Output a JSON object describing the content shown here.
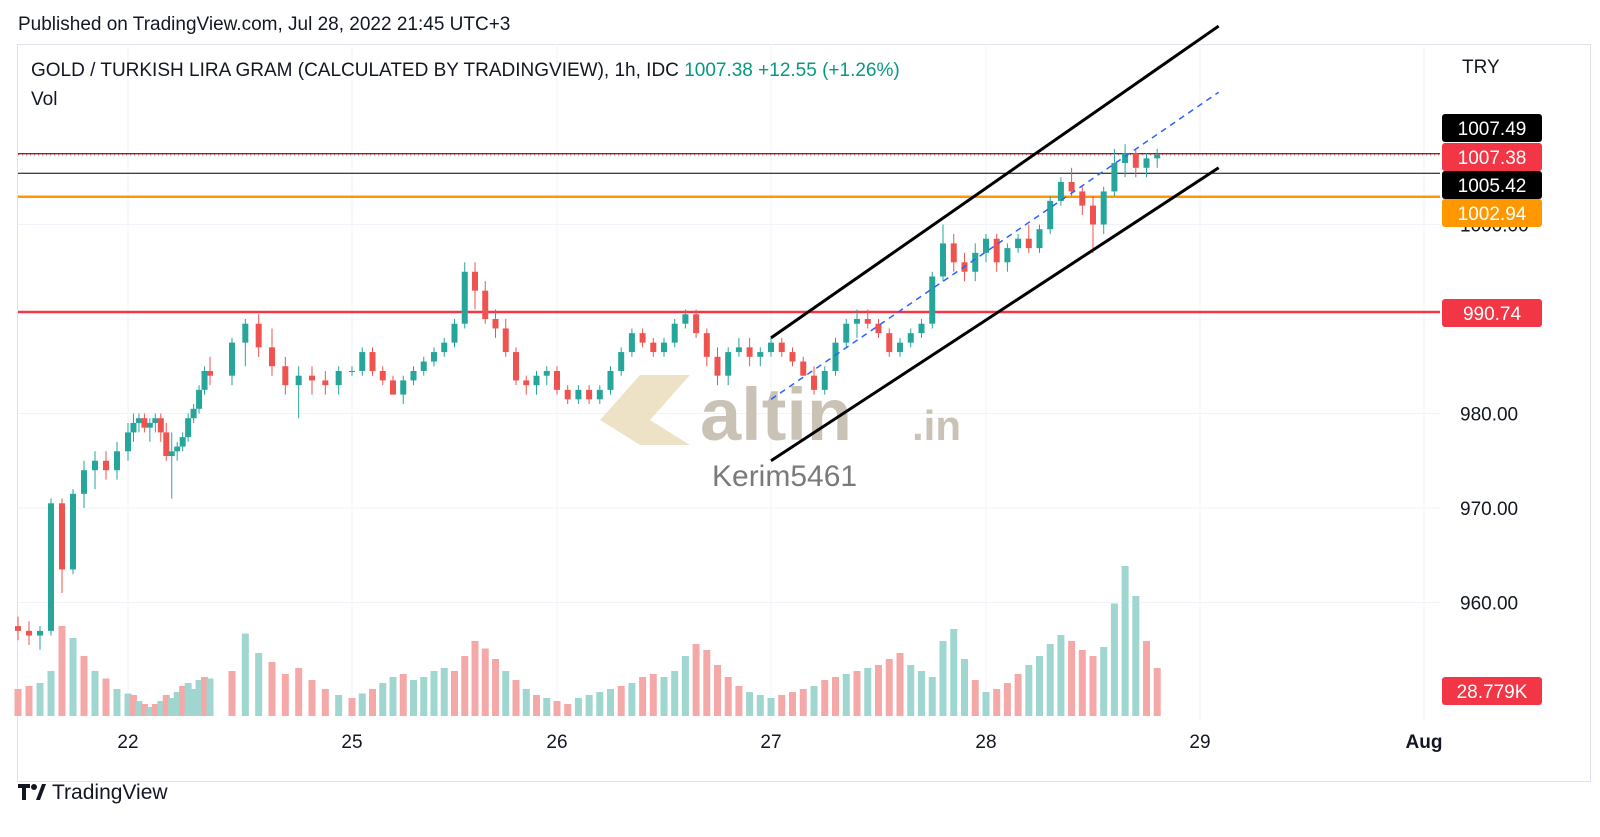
{
  "header": {
    "published": "Published on TradingView.com, Jul 28, 2022 21:45 UTC+3",
    "symbol": "GOLD / TURKISH LIRA GRAM (CALCULATED BY TRADINGVIEW), 1h, IDC",
    "last_price": "1007.38",
    "change": "+12.55 (+1.26%)",
    "volume_label": "Vol",
    "currency": "TRY"
  },
  "footer": {
    "brand": "TradingView",
    "logo_icon": "tradingview-logo-icon"
  },
  "watermark": {
    "brand": "altin",
    "suffix": ".in",
    "author": "Kerim5461"
  },
  "colors": {
    "up": "#26a69a",
    "down": "#ef5350",
    "orange_line": "#ff9800",
    "red_line": "#f23645",
    "black": "#000000",
    "channel_mid": "#2962ff"
  },
  "chart_data": {
    "type": "candlestick",
    "title": "GOLD / TURKISH LIRA GRAM (CALCULATED BY TRADINGVIEW), 1h, IDC",
    "x_ticks": [
      "22",
      "25",
      "26",
      "27",
      "28",
      "29",
      "Aug"
    ],
    "y_ticks": [
      "960.00",
      "970.00",
      "980.00",
      "1000.00"
    ],
    "ylim": [
      950,
      1010
    ],
    "grid": true,
    "price_tags": [
      {
        "label": "1007.49",
        "value": 1007.49,
        "color": "#000000"
      },
      {
        "label": "1007.38",
        "value": 1007.38,
        "color": "#f23645"
      },
      {
        "label": "1005.42",
        "value": 1005.42,
        "color": "#000000"
      },
      {
        "label": "1002.94",
        "value": 1002.94,
        "color": "#ff9800"
      },
      {
        "label": "990.74",
        "value": 990.74,
        "color": "#f23645"
      }
    ],
    "volume_tag": {
      "label": "28.779K",
      "color": "#f23645"
    },
    "horizontal_lines": [
      {
        "value": 1005.42,
        "color": "#000000"
      },
      {
        "value": 1007.49,
        "color": "#000000"
      },
      {
        "value": 1002.94,
        "color": "#ff9800"
      },
      {
        "value": 990.74,
        "color": "#f23645"
      }
    ],
    "channel": {
      "upper": [
        [
          27.0,
          988
        ],
        [
          29.25,
          1021
        ]
      ],
      "lower": [
        [
          27.0,
          975
        ],
        [
          29.25,
          1006
        ]
      ],
      "middle": [
        [
          27.0,
          981.5
        ],
        [
          29.25,
          1014
        ]
      ]
    },
    "candles": [
      [
        21.5,
        957.5,
        958.5,
        956,
        957
      ],
      [
        21.55,
        957,
        958,
        955.5,
        956.5
      ],
      [
        21.6,
        956.5,
        957.5,
        955,
        957
      ],
      [
        21.65,
        957,
        971,
        956.5,
        970.5
      ],
      [
        21.7,
        970.5,
        971,
        961,
        963.5
      ],
      [
        21.75,
        963.5,
        972,
        963,
        971.5
      ],
      [
        21.8,
        971.5,
        975,
        970,
        974
      ],
      [
        21.85,
        974,
        976,
        972,
        975
      ],
      [
        21.9,
        975,
        976,
        973,
        974
      ],
      [
        21.95,
        974,
        977,
        973,
        976
      ],
      [
        22.0,
        976,
        979,
        975,
        978
      ],
      [
        22.05,
        978,
        980,
        977,
        979
      ],
      [
        22.1,
        979,
        980,
        978,
        979.5
      ],
      [
        22.15,
        979.5,
        980,
        978,
        978.5
      ],
      [
        22.2,
        978.5,
        979.5,
        977,
        979
      ],
      [
        22.25,
        979,
        980,
        978,
        979.5
      ],
      [
        22.3,
        979.5,
        980,
        977,
        978
      ],
      [
        22.35,
        978,
        979,
        975,
        975.5
      ],
      [
        22.4,
        975.5,
        978,
        971,
        976
      ],
      [
        22.45,
        976,
        977,
        975,
        976.5
      ],
      [
        22.5,
        976.5,
        978,
        976,
        977.5
      ],
      [
        22.55,
        977.5,
        980,
        977,
        979.5
      ],
      [
        22.6,
        979.5,
        981,
        979,
        980.5
      ],
      [
        22.65,
        980.5,
        983,
        980,
        982.5
      ],
      [
        22.7,
        982.5,
        985,
        982,
        984.5
      ],
      [
        22.75,
        984.5,
        986,
        983,
        984
      ],
      [
        24.55,
        984,
        988,
        983,
        987.5
      ],
      [
        24.6,
        987.5,
        990,
        985,
        989.5
      ],
      [
        24.65,
        989.5,
        990.5,
        986,
        987
      ],
      [
        24.7,
        987,
        989,
        984,
        985
      ],
      [
        24.75,
        985,
        986,
        982,
        983
      ],
      [
        24.8,
        983,
        985,
        979.5,
        984
      ],
      [
        24.85,
        984,
        985,
        982,
        983.5
      ],
      [
        24.9,
        983.5,
        984.5,
        982,
        983
      ],
      [
        24.95,
        983,
        985,
        982,
        984.5
      ],
      [
        25.0,
        984.5,
        985,
        984,
        984.5
      ],
      [
        25.05,
        984.5,
        987,
        984,
        986.5
      ],
      [
        25.1,
        986.5,
        987,
        984,
        984.5
      ],
      [
        25.15,
        984.5,
        985,
        983,
        983.5
      ],
      [
        25.2,
        983.5,
        984,
        982,
        982
      ],
      [
        25.25,
        982,
        984,
        981,
        983.5
      ],
      [
        25.3,
        983.5,
        985,
        983,
        984.5
      ],
      [
        25.35,
        984.5,
        986,
        984,
        985.5
      ],
      [
        25.4,
        985.5,
        987,
        985,
        986.5
      ],
      [
        25.45,
        986.5,
        988,
        986,
        987.5
      ],
      [
        25.5,
        987.5,
        990,
        987,
        989.5
      ],
      [
        25.55,
        989.5,
        996,
        989,
        995
      ],
      [
        25.6,
        995,
        996,
        991,
        993
      ],
      [
        25.65,
        993,
        994,
        989.5,
        990
      ],
      [
        25.7,
        990,
        991,
        988,
        989
      ],
      [
        25.75,
        989,
        990,
        986,
        986.5
      ],
      [
        25.8,
        986.5,
        987,
        983,
        983.5
      ],
      [
        25.85,
        983.5,
        984,
        982,
        983
      ],
      [
        25.9,
        983,
        984.5,
        982,
        984
      ],
      [
        25.95,
        984,
        985,
        983,
        984.5
      ],
      [
        26.0,
        984.5,
        985,
        982,
        982.5
      ],
      [
        26.05,
        982.5,
        983,
        981,
        981.5
      ],
      [
        26.1,
        981.5,
        983,
        981,
        982.5
      ],
      [
        26.15,
        982.5,
        983,
        981,
        981.5
      ],
      [
        26.2,
        981.5,
        983,
        981,
        982.5
      ],
      [
        26.25,
        982.5,
        985,
        982,
        984.5
      ],
      [
        26.3,
        984.5,
        987,
        984,
        986.5
      ],
      [
        26.35,
        986.5,
        989,
        986,
        988.5
      ],
      [
        26.4,
        988.5,
        989,
        987,
        987.5
      ],
      [
        26.45,
        987.5,
        988,
        986,
        986.5
      ],
      [
        26.5,
        986.5,
        988,
        986,
        987.5
      ],
      [
        26.55,
        987.5,
        990,
        987,
        989.5
      ],
      [
        26.6,
        989.5,
        991,
        989,
        990.5
      ],
      [
        26.65,
        990.5,
        991,
        988,
        988.5
      ],
      [
        26.7,
        988.5,
        989,
        985,
        986
      ],
      [
        26.75,
        986,
        987,
        983,
        984
      ],
      [
        26.8,
        984,
        987,
        983,
        986.5
      ],
      [
        26.85,
        986.5,
        988,
        986,
        987
      ],
      [
        26.9,
        987,
        988,
        985,
        986
      ],
      [
        26.95,
        986,
        987,
        985,
        986.5
      ],
      [
        27.0,
        986.5,
        988,
        986,
        987.5
      ],
      [
        27.05,
        987.5,
        988,
        986,
        986.5
      ],
      [
        27.1,
        986.5,
        987,
        985,
        985.5
      ],
      [
        27.15,
        985.5,
        986,
        984,
        984
      ],
      [
        27.2,
        984,
        985,
        982,
        982.5
      ],
      [
        27.25,
        982.5,
        985,
        982,
        984.5
      ],
      [
        27.3,
        984.5,
        988,
        984,
        987.5
      ],
      [
        27.35,
        987.5,
        990,
        987,
        989.5
      ],
      [
        27.4,
        989.5,
        991,
        988,
        990
      ],
      [
        27.45,
        990,
        991,
        989,
        989.5
      ],
      [
        27.5,
        989.5,
        990,
        988,
        988.5
      ],
      [
        27.55,
        988.5,
        989,
        986,
        986.5
      ],
      [
        27.6,
        986.5,
        988,
        986,
        987.5
      ],
      [
        27.65,
        987.5,
        989,
        987,
        988.5
      ],
      [
        27.7,
        988.5,
        990,
        988,
        989.5
      ],
      [
        27.75,
        989.5,
        995,
        989,
        994.5
      ],
      [
        27.8,
        994.5,
        1000,
        994,
        998
      ],
      [
        27.85,
        998,
        999,
        995,
        996
      ],
      [
        27.9,
        996,
        997,
        994,
        995
      ],
      [
        27.95,
        995,
        998,
        994,
        997
      ],
      [
        28.0,
        997,
        999,
        996,
        998.5
      ],
      [
        28.05,
        998.5,
        999,
        995,
        996
      ],
      [
        28.1,
        996,
        998,
        995,
        997.5
      ],
      [
        28.15,
        997.5,
        999,
        997,
        998.5
      ],
      [
        28.2,
        998.5,
        1000,
        997,
        997.5
      ],
      [
        28.25,
        997.5,
        1000,
        997,
        999.5
      ],
      [
        28.3,
        999.5,
        1003,
        999,
        1002.5
      ],
      [
        28.35,
        1002.5,
        1005,
        1002,
        1004.5
      ],
      [
        28.4,
        1004.5,
        1006,
        1003,
        1003.5
      ],
      [
        28.45,
        1003.5,
        1004,
        1001,
        1002
      ],
      [
        28.5,
        1002,
        1003,
        997,
        1000
      ],
      [
        28.55,
        1000,
        1004,
        999,
        1003.5
      ],
      [
        28.6,
        1003.5,
        1008,
        1003,
        1006.5
      ],
      [
        28.65,
        1006.5,
        1008.5,
        1005,
        1007.5
      ],
      [
        28.7,
        1007.5,
        1008,
        1005,
        1006
      ],
      [
        28.75,
        1006,
        1007.5,
        1005,
        1007
      ],
      [
        28.8,
        1007,
        1008,
        1006,
        1007.38
      ]
    ],
    "volume": [
      [
        21.5,
        18,
        "down"
      ],
      [
        21.55,
        20,
        "down"
      ],
      [
        21.6,
        22,
        "up"
      ],
      [
        21.65,
        30,
        "up"
      ],
      [
        21.7,
        60,
        "down"
      ],
      [
        21.75,
        52,
        "up"
      ],
      [
        21.8,
        40,
        "down"
      ],
      [
        21.85,
        30,
        "up"
      ],
      [
        21.9,
        25,
        "down"
      ],
      [
        21.95,
        18,
        "up"
      ],
      [
        22.0,
        15,
        "up"
      ],
      [
        22.05,
        14,
        "down"
      ],
      [
        22.1,
        10,
        "up"
      ],
      [
        22.15,
        8,
        "down"
      ],
      [
        22.2,
        6,
        "up"
      ],
      [
        22.25,
        8,
        "down"
      ],
      [
        22.3,
        10,
        "up"
      ],
      [
        22.35,
        14,
        "down"
      ],
      [
        22.4,
        12,
        "up"
      ],
      [
        22.45,
        16,
        "up"
      ],
      [
        22.5,
        20,
        "down"
      ],
      [
        22.55,
        22,
        "up"
      ],
      [
        22.6,
        18,
        "up"
      ],
      [
        22.65,
        24,
        "up"
      ],
      [
        22.7,
        26,
        "down"
      ],
      [
        22.75,
        25,
        "up"
      ],
      [
        24.55,
        30,
        "down"
      ],
      [
        24.6,
        55,
        "up"
      ],
      [
        24.65,
        42,
        "up"
      ],
      [
        24.7,
        36,
        "down"
      ],
      [
        24.75,
        28,
        "down"
      ],
      [
        24.8,
        32,
        "down"
      ],
      [
        24.85,
        24,
        "down"
      ],
      [
        24.9,
        18,
        "down"
      ],
      [
        24.95,
        14,
        "up"
      ],
      [
        25.0,
        12,
        "down"
      ],
      [
        25.05,
        15,
        "up"
      ],
      [
        25.1,
        18,
        "down"
      ],
      [
        25.15,
        22,
        "up"
      ],
      [
        25.2,
        26,
        "up"
      ],
      [
        25.25,
        28,
        "down"
      ],
      [
        25.3,
        24,
        "up"
      ],
      [
        25.35,
        26,
        "up"
      ],
      [
        25.4,
        30,
        "up"
      ],
      [
        25.45,
        32,
        "up"
      ],
      [
        25.5,
        30,
        "down"
      ],
      [
        25.55,
        40,
        "down"
      ],
      [
        25.6,
        50,
        "down"
      ],
      [
        25.65,
        45,
        "down"
      ],
      [
        25.7,
        38,
        "down"
      ],
      [
        25.75,
        30,
        "up"
      ],
      [
        25.8,
        24,
        "down"
      ],
      [
        25.85,
        18,
        "up"
      ],
      [
        25.9,
        14,
        "down"
      ],
      [
        25.95,
        12,
        "up"
      ],
      [
        26.0,
        10,
        "down"
      ],
      [
        26.05,
        8,
        "down"
      ],
      [
        26.1,
        12,
        "up"
      ],
      [
        26.15,
        14,
        "up"
      ],
      [
        26.2,
        16,
        "up"
      ],
      [
        26.25,
        18,
        "up"
      ],
      [
        26.3,
        20,
        "down"
      ],
      [
        26.35,
        22,
        "up"
      ],
      [
        26.4,
        26,
        "down"
      ],
      [
        26.45,
        28,
        "down"
      ],
      [
        26.5,
        26,
        "up"
      ],
      [
        26.55,
        30,
        "up"
      ],
      [
        26.6,
        40,
        "up"
      ],
      [
        26.65,
        48,
        "down"
      ],
      [
        26.7,
        44,
        "down"
      ],
      [
        26.75,
        34,
        "down"
      ],
      [
        26.8,
        26,
        "down"
      ],
      [
        26.85,
        20,
        "down"
      ],
      [
        26.9,
        16,
        "up"
      ],
      [
        26.95,
        14,
        "up"
      ],
      [
        27.0,
        12,
        "up"
      ],
      [
        27.05,
        14,
        "down"
      ],
      [
        27.1,
        16,
        "down"
      ],
      [
        27.15,
        18,
        "down"
      ],
      [
        27.2,
        20,
        "up"
      ],
      [
        27.25,
        24,
        "down"
      ],
      [
        27.3,
        26,
        "down"
      ],
      [
        27.35,
        28,
        "up"
      ],
      [
        27.4,
        30,
        "down"
      ],
      [
        27.45,
        32,
        "up"
      ],
      [
        27.5,
        34,
        "down"
      ],
      [
        27.55,
        38,
        "down"
      ],
      [
        27.6,
        42,
        "down"
      ],
      [
        27.65,
        34,
        "up"
      ],
      [
        27.7,
        30,
        "up"
      ],
      [
        27.75,
        26,
        "up"
      ],
      [
        27.8,
        50,
        "up"
      ],
      [
        27.85,
        58,
        "up"
      ],
      [
        27.9,
        38,
        "up"
      ],
      [
        27.95,
        24,
        "down"
      ],
      [
        28.0,
        16,
        "up"
      ],
      [
        28.05,
        18,
        "down"
      ],
      [
        28.1,
        22,
        "down"
      ],
      [
        28.15,
        28,
        "down"
      ],
      [
        28.2,
        34,
        "up"
      ],
      [
        28.25,
        40,
        "up"
      ],
      [
        28.3,
        48,
        "up"
      ],
      [
        28.35,
        54,
        "up"
      ],
      [
        28.4,
        50,
        "down"
      ],
      [
        28.45,
        44,
        "down"
      ],
      [
        28.5,
        40,
        "down"
      ],
      [
        28.55,
        46,
        "up"
      ],
      [
        28.6,
        75,
        "up"
      ],
      [
        28.65,
        100,
        "up"
      ],
      [
        28.7,
        80,
        "up"
      ],
      [
        28.75,
        50,
        "down"
      ],
      [
        28.8,
        32,
        "down"
      ]
    ]
  }
}
